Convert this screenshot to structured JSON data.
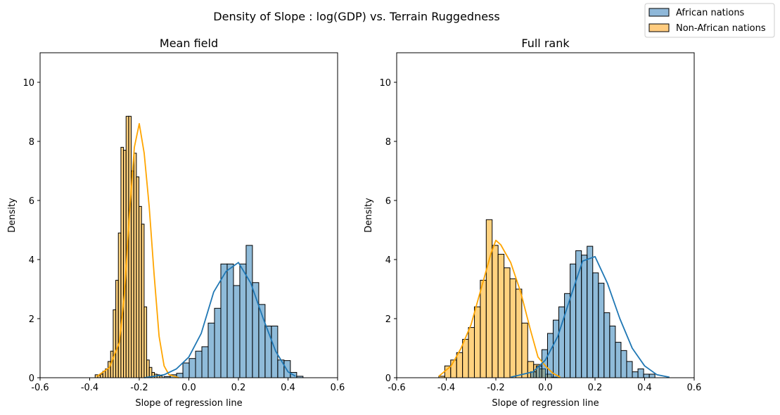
{
  "figure": {
    "suptitle": "Density of Slope : log(GDP) vs. Terrain Ruggedness",
    "legend": {
      "placement": "top-right",
      "entries": [
        {
          "label": "African nations",
          "color": "#1f77b4"
        },
        {
          "label": "Non-African nations",
          "color": "#ffa500"
        }
      ]
    },
    "colors": {
      "african_fill": "#8fb8d9",
      "african_line": "#1f77b4",
      "nonafrican_fill": "#ffcc7f",
      "nonafrican_line": "#ffa500",
      "edge": "#000000",
      "overlap_fill": "#c8c29f"
    }
  },
  "chart_data": [
    {
      "type": "bar",
      "title": "Mean field",
      "xlabel": "Slope of regression line",
      "ylabel": "Density",
      "xlim": [
        -0.6,
        0.6
      ],
      "ylim": [
        0,
        11
      ],
      "xticks": [
        "-0.6",
        "-0.4",
        "-0.2",
        "0.0",
        "0.2",
        "0.4",
        "0.6"
      ],
      "yticks": [
        "0",
        "2",
        "4",
        "6",
        "8",
        "10"
      ],
      "grid": false,
      "series": [
        {
          "name": "African nations",
          "bin_start": -0.1005,
          "bin_width": 0.0255,
          "values": [
            0.04,
            0.1,
            0.15,
            0.5,
            0.65,
            0.9,
            1.05,
            1.85,
            2.35,
            3.85,
            3.85,
            3.12,
            3.85,
            4.48,
            3.22,
            2.48,
            1.75,
            1.75,
            0.6,
            0.58,
            0.18,
            0.05
          ],
          "kde_x": [
            -0.18,
            -0.1,
            -0.05,
            0.0,
            0.05,
            0.1,
            0.15,
            0.2,
            0.25,
            0.3,
            0.35,
            0.4,
            0.43
          ],
          "kde_y": [
            0.0,
            0.1,
            0.3,
            0.7,
            1.5,
            2.9,
            3.6,
            3.9,
            3.2,
            2.0,
            0.9,
            0.2,
            0.05
          ]
        },
        {
          "name": "Non-African nations",
          "bin_start": -0.378,
          "bin_width": 0.0104,
          "values": [
            0.1,
            0.08,
            0.12,
            0.22,
            0.3,
            0.55,
            0.9,
            2.3,
            3.3,
            4.9,
            7.8,
            7.7,
            8.85,
            8.85,
            7.0,
            7.6,
            6.8,
            5.8,
            5.2,
            2.4,
            0.6,
            0.35,
            0.18,
            0.12,
            0.1,
            0.06
          ],
          "kde_x": [
            -0.37,
            -0.32,
            -0.28,
            -0.26,
            -0.24,
            -0.22,
            -0.2,
            -0.18,
            -0.16,
            -0.14,
            -0.12,
            -0.1,
            -0.08,
            -0.04
          ],
          "kde_y": [
            0.05,
            0.35,
            1.2,
            2.8,
            5.5,
            7.8,
            8.6,
            7.6,
            5.8,
            3.5,
            1.4,
            0.4,
            0.1,
            0.0
          ]
        }
      ]
    },
    {
      "type": "bar",
      "title": "Full rank",
      "xlabel": "Slope of regression line",
      "ylabel": "Density",
      "xlim": [
        -0.6,
        0.6
      ],
      "ylim": [
        0,
        11
      ],
      "xticks": [
        "-0.6",
        "-0.4",
        "-0.2",
        "0.0",
        "0.2",
        "0.4",
        "0.6"
      ],
      "yticks": [
        "0",
        "2",
        "4",
        "6",
        "8",
        "10"
      ],
      "grid": false,
      "series": [
        {
          "name": "African nations",
          "bin_start": -0.06,
          "bin_width": 0.0228,
          "values": [
            0.2,
            0.4,
            0.95,
            1.5,
            1.95,
            2.4,
            2.85,
            3.85,
            4.3,
            4.15,
            4.45,
            3.55,
            3.2,
            2.2,
            1.75,
            1.2,
            0.92,
            0.55,
            0.2,
            0.3,
            0.12,
            0.12
          ],
          "kde_x": [
            -0.14,
            -0.05,
            0.0,
            0.05,
            0.1,
            0.15,
            0.2,
            0.25,
            0.3,
            0.35,
            0.4,
            0.45,
            0.5
          ],
          "kde_y": [
            0.02,
            0.2,
            0.6,
            1.4,
            2.7,
            3.95,
            4.1,
            3.2,
            2.0,
            1.0,
            0.4,
            0.1,
            0.02
          ]
        },
        {
          "name": "Non-African nations",
          "bin_start": -0.43,
          "bin_width": 0.0239,
          "values": [
            0.05,
            0.4,
            0.6,
            0.85,
            1.3,
            1.7,
            2.4,
            3.3,
            5.35,
            4.48,
            4.18,
            3.72,
            3.35,
            3.0,
            1.85,
            0.55,
            0.45,
            0.3,
            0.12,
            0.02
          ],
          "kde_x": [
            -0.43,
            -0.38,
            -0.34,
            -0.3,
            -0.26,
            -0.22,
            -0.2,
            -0.18,
            -0.14,
            -0.1,
            -0.06,
            -0.03,
            0.0,
            0.03,
            0.06
          ],
          "kde_y": [
            0.05,
            0.4,
            1.0,
            1.8,
            3.0,
            4.2,
            4.65,
            4.5,
            3.9,
            2.9,
            1.6,
            0.7,
            0.4,
            0.15,
            0.02
          ]
        }
      ]
    }
  ]
}
